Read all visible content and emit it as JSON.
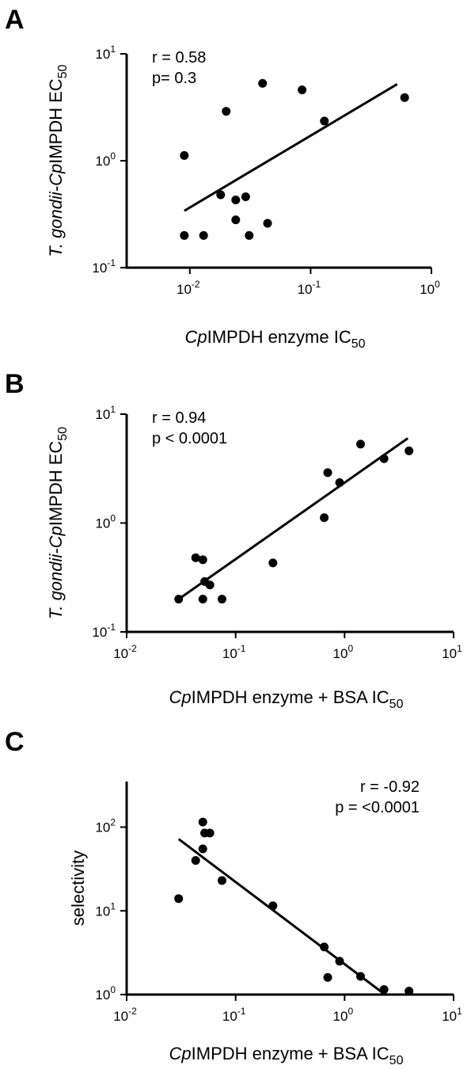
{
  "chart_data": [
    {
      "panel": "A",
      "type": "scatter",
      "x_scale": "log",
      "y_scale": "log",
      "xlim": [
        0.003,
        1
      ],
      "ylim": [
        0.1,
        10
      ],
      "x_ticks": [
        {
          "value": 0.01,
          "base": "10",
          "exp": "-2"
        },
        {
          "value": 0.1,
          "base": "10",
          "exp": "-1"
        },
        {
          "value": 1,
          "base": "10",
          "exp": "0"
        }
      ],
      "y_ticks": [
        {
          "value": 0.1,
          "base": "10",
          "exp": "-1"
        },
        {
          "value": 1,
          "base": "10",
          "exp": "0"
        },
        {
          "value": 10,
          "base": "10",
          "exp": "1"
        }
      ],
      "xlabel": {
        "italic": "Cp",
        "main": "IMPDH enzyme IC",
        "sub": "50"
      },
      "ylabel": {
        "italic": "T. gondii-Cp",
        "main": "IMPDH EC",
        "sub": "50"
      },
      "stats": [
        "r = 0.58",
        "p= 0.3"
      ],
      "stats_anchor": "top-left",
      "points": [
        {
          "x": 0.009,
          "y": 1.12
        },
        {
          "x": 0.009,
          "y": 0.2
        },
        {
          "x": 0.013,
          "y": 0.2
        },
        {
          "x": 0.018,
          "y": 0.48
        },
        {
          "x": 0.02,
          "y": 2.9
        },
        {
          "x": 0.024,
          "y": 0.43
        },
        {
          "x": 0.024,
          "y": 0.28
        },
        {
          "x": 0.029,
          "y": 0.46
        },
        {
          "x": 0.031,
          "y": 0.2
        },
        {
          "x": 0.04,
          "y": 5.3
        },
        {
          "x": 0.044,
          "y": 0.26
        },
        {
          "x": 0.085,
          "y": 4.6
        },
        {
          "x": 0.13,
          "y": 2.35
        },
        {
          "x": 0.6,
          "y": 3.9
        }
      ],
      "fit": [
        {
          "x": 0.009,
          "y": 0.34
        },
        {
          "x": 0.52,
          "y": 5.2
        }
      ]
    },
    {
      "panel": "B",
      "type": "scatter",
      "x_scale": "log",
      "y_scale": "log",
      "xlim": [
        0.01,
        10
      ],
      "ylim": [
        0.1,
        10
      ],
      "x_ticks": [
        {
          "value": 0.01,
          "base": "10",
          "exp": "-2"
        },
        {
          "value": 0.1,
          "base": "10",
          "exp": "-1"
        },
        {
          "value": 1,
          "base": "10",
          "exp": "0"
        },
        {
          "value": 10,
          "base": "10",
          "exp": "1"
        }
      ],
      "y_ticks": [
        {
          "value": 0.1,
          "base": "10",
          "exp": "-1"
        },
        {
          "value": 1,
          "base": "10",
          "exp": "0"
        },
        {
          "value": 10,
          "base": "10",
          "exp": "1"
        }
      ],
      "xlabel": {
        "italic": "Cp",
        "main": "IMPDH enzyme + BSA IC",
        "sub": "50"
      },
      "ylabel": {
        "italic": "T. gondii-Cp",
        "main": "IMPDH EC",
        "sub": "50"
      },
      "stats": [
        "r = 0.94",
        "p < 0.0001"
      ],
      "stats_anchor": "top-left",
      "points": [
        {
          "x": 0.03,
          "y": 0.2
        },
        {
          "x": 0.043,
          "y": 0.48
        },
        {
          "x": 0.05,
          "y": 0.46
        },
        {
          "x": 0.05,
          "y": 0.2
        },
        {
          "x": 0.052,
          "y": 0.29
        },
        {
          "x": 0.058,
          "y": 0.27
        },
        {
          "x": 0.075,
          "y": 0.2
        },
        {
          "x": 0.22,
          "y": 0.43
        },
        {
          "x": 0.65,
          "y": 1.12
        },
        {
          "x": 0.7,
          "y": 2.9
        },
        {
          "x": 0.9,
          "y": 2.35
        },
        {
          "x": 1.4,
          "y": 5.3
        },
        {
          "x": 2.3,
          "y": 3.9
        },
        {
          "x": 3.9,
          "y": 4.6
        }
      ],
      "fit": [
        {
          "x": 0.03,
          "y": 0.2
        },
        {
          "x": 3.8,
          "y": 6.0
        }
      ]
    },
    {
      "panel": "C",
      "type": "scatter",
      "x_scale": "log",
      "y_scale": "log",
      "xlim": [
        0.01,
        10
      ],
      "ylim": [
        1,
        350
      ],
      "x_ticks": [
        {
          "value": 0.01,
          "base": "10",
          "exp": "-2"
        },
        {
          "value": 0.1,
          "base": "10",
          "exp": "-1"
        },
        {
          "value": 1,
          "base": "10",
          "exp": "0"
        },
        {
          "value": 10,
          "base": "10",
          "exp": "1"
        }
      ],
      "y_ticks": [
        {
          "value": 1,
          "base": "10",
          "exp": "0"
        },
        {
          "value": 10,
          "base": "10",
          "exp": "1"
        },
        {
          "value": 100,
          "base": "10",
          "exp": "2"
        }
      ],
      "xlabel": {
        "italic": "Cp",
        "main": "IMPDH enzyme + BSA IC",
        "sub": "50"
      },
      "ylabel": {
        "italic": "",
        "main": "selectivity",
        "sub": ""
      },
      "stats": [
        "r = -0.92",
        "p = <0.0001"
      ],
      "stats_anchor": "top-right",
      "points": [
        {
          "x": 0.03,
          "y": 14
        },
        {
          "x": 0.043,
          "y": 40
        },
        {
          "x": 0.05,
          "y": 115
        },
        {
          "x": 0.05,
          "y": 55
        },
        {
          "x": 0.052,
          "y": 85
        },
        {
          "x": 0.058,
          "y": 85
        },
        {
          "x": 0.075,
          "y": 23
        },
        {
          "x": 0.22,
          "y": 11.5
        },
        {
          "x": 0.65,
          "y": 3.7
        },
        {
          "x": 0.7,
          "y": 1.6
        },
        {
          "x": 0.9,
          "y": 2.5
        },
        {
          "x": 1.4,
          "y": 1.65
        },
        {
          "x": 2.3,
          "y": 1.15
        },
        {
          "x": 3.9,
          "y": 1.1
        }
      ],
      "fit": [
        {
          "x": 0.03,
          "y": 72
        },
        {
          "x": 2.35,
          "y": 1.0
        }
      ]
    }
  ]
}
